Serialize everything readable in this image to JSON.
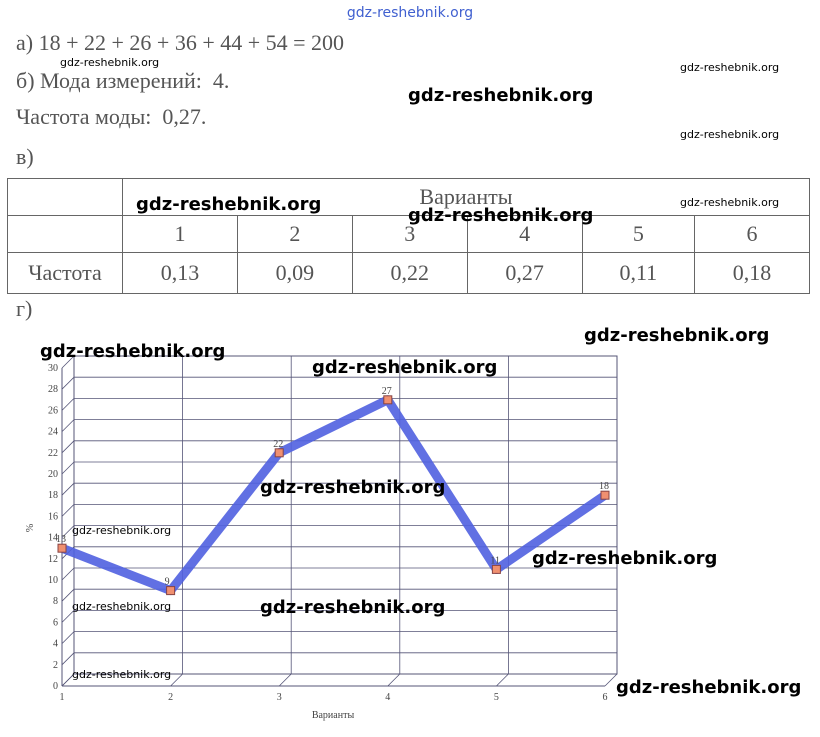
{
  "lines": {
    "a": "а) 18 + 22 + 26 + 36 + 44 + 54 = 200",
    "b": "б) Мода измерений:  4.",
    "mode_freq": "Частота моды:  0,27.",
    "v": "в)",
    "g": "г)"
  },
  "table": {
    "header": "Варианты",
    "columns": [
      "1",
      "2",
      "3",
      "4",
      "5",
      "6"
    ],
    "row_label": "Частота",
    "row": [
      "0,13",
      "0,09",
      "0,22",
      "0,27",
      "0,11",
      "0,18"
    ]
  },
  "chart_data": {
    "type": "line",
    "x_label": "Варианты",
    "y_label": "%",
    "x": [
      1,
      2,
      3,
      4,
      5,
      6
    ],
    "values": [
      13,
      9,
      22,
      27,
      11,
      18
    ],
    "color": "#5060e0",
    "xlim": [
      1,
      6
    ],
    "xticks": [
      1,
      2,
      3,
      4,
      5,
      6
    ],
    "ylim": [
      0,
      30
    ],
    "yticks": [
      0,
      2,
      4,
      6,
      8,
      10,
      12,
      14,
      16,
      18,
      20,
      22,
      24,
      26,
      28,
      30
    ],
    "grid": true
  },
  "watermarks": {
    "header": "gdz-reshebnik.org",
    "large": [
      "gdz-reshebnik.org",
      "gdz-reshebnik.org",
      "gdz-reshebnik.org",
      "gdz-reshebnik.org",
      "gdz-reshebnik.org",
      "gdz-reshebnik.org",
      "gdz-reshebnik.org",
      "gdz-reshebnik.org",
      "gdz-reshebnik.org",
      "gdz-reshebnik.org"
    ],
    "small": [
      "gdz-reshebnik.org",
      "gdz-reshebnik.org",
      "gdz-reshebnik.org",
      "gdz-reshebnik.org",
      "gdz-reshebnik.org",
      "gdz-reshebnik.org",
      "gdz-reshebnik.org"
    ]
  }
}
